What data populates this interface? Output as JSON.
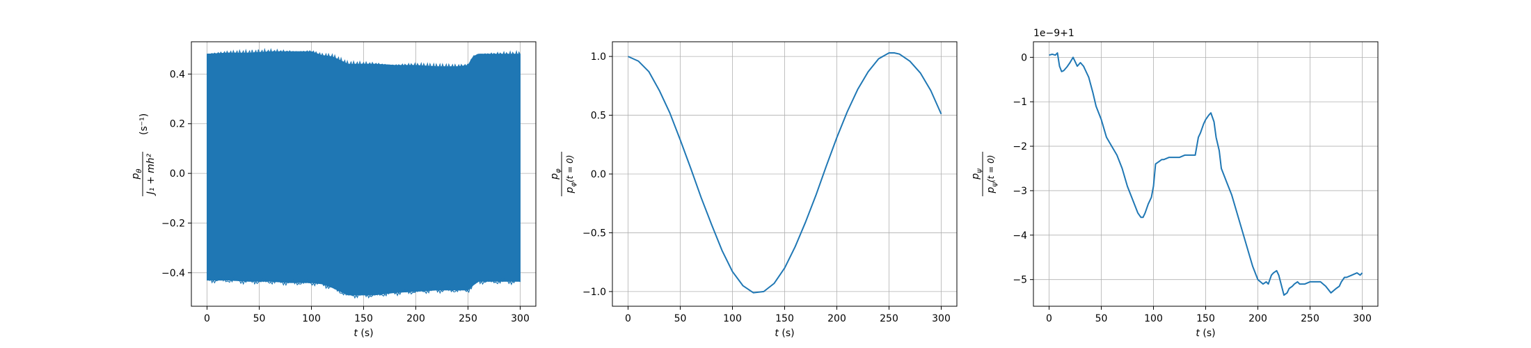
{
  "chart_data": [
    {
      "type": "line",
      "xlabel_var": "t",
      "xlabel_unit": " (s)",
      "ylabel": {
        "num": "p",
        "num_sub": "θ",
        "den": "J₁ + mh²",
        "unit": "(s⁻¹)"
      },
      "xlim": [
        -15,
        315
      ],
      "ylim": [
        -0.535,
        0.53
      ],
      "xticks": [
        0,
        50,
        100,
        150,
        200,
        250,
        300
      ],
      "yticks": [
        -0.4,
        -0.2,
        0.0,
        0.2,
        0.4
      ],
      "ytick_labels": [
        "−0.4",
        "−0.2",
        "0.0",
        "0.2",
        "0.4"
      ],
      "grid": true,
      "color": "#1f77b4",
      "series": [
        {
          "style": "envelope",
          "x": [
            0,
            20,
            40,
            60,
            80,
            100,
            110,
            120,
            125,
            130,
            135,
            140,
            150,
            160,
            180,
            200,
            220,
            240,
            250,
            255,
            260,
            280,
            300
          ],
          "upper": [
            0.48,
            0.485,
            0.485,
            0.49,
            0.49,
            0.49,
            0.475,
            0.47,
            0.46,
            0.45,
            0.44,
            0.44,
            0.44,
            0.44,
            0.435,
            0.435,
            0.43,
            0.43,
            0.435,
            0.47,
            0.48,
            0.48,
            0.48
          ],
          "lower": [
            -0.43,
            -0.43,
            -0.435,
            -0.435,
            -0.44,
            -0.44,
            -0.445,
            -0.46,
            -0.47,
            -0.48,
            -0.49,
            -0.49,
            -0.49,
            -0.49,
            -0.48,
            -0.475,
            -0.47,
            -0.47,
            -0.47,
            -0.45,
            -0.435,
            -0.435,
            -0.435
          ]
        }
      ]
    },
    {
      "type": "line",
      "xlabel_var": "t",
      "xlabel_unit": " (s)",
      "ylabel": {
        "num": "p",
        "num_sub": "φ",
        "den": "p",
        "den_sub": "φ",
        "den_arg": "(t = 0)"
      },
      "xlim": [
        -15,
        315
      ],
      "ylim": [
        -1.125,
        1.125
      ],
      "xticks": [
        0,
        50,
        100,
        150,
        200,
        250,
        300
      ],
      "yticks": [
        -1.0,
        -0.5,
        0.0,
        0.5,
        1.0
      ],
      "ytick_labels": [
        "−1.0",
        "−0.5",
        "0.0",
        "0.5",
        "1.0"
      ],
      "grid": true,
      "color": "#1f77b4",
      "series": [
        {
          "style": "line",
          "x": [
            0,
            10,
            20,
            30,
            40,
            50,
            60,
            70,
            80,
            90,
            100,
            110,
            120,
            130,
            140,
            150,
            160,
            170,
            180,
            190,
            200,
            210,
            220,
            230,
            240,
            250,
            255,
            260,
            270,
            280,
            290,
            300
          ],
          "y": [
            1.0,
            0.96,
            0.87,
            0.71,
            0.52,
            0.29,
            0.05,
            -0.2,
            -0.43,
            -0.65,
            -0.83,
            -0.95,
            -1.01,
            -1.0,
            -0.93,
            -0.8,
            -0.62,
            -0.41,
            -0.18,
            0.07,
            0.31,
            0.53,
            0.72,
            0.87,
            0.98,
            1.03,
            1.03,
            1.02,
            0.96,
            0.86,
            0.71,
            0.51
          ]
        }
      ]
    },
    {
      "type": "line",
      "offset_text": "1e−9+1",
      "xlabel_var": "t",
      "xlabel_unit": " (s)",
      "ylabel": {
        "num": "p",
        "num_sub": "ψ",
        "den": "p",
        "den_sub": "ψ",
        "den_arg": "(t = 0)"
      },
      "xlim": [
        -15,
        315
      ],
      "ylim": [
        -5.6,
        0.35
      ],
      "xticks": [
        0,
        50,
        100,
        150,
        200,
        250,
        300
      ],
      "yticks": [
        -5,
        -4,
        -3,
        -2,
        -1,
        0
      ],
      "ytick_labels": [
        "−5",
        "−4",
        "−3",
        "−2",
        "−1",
        "0"
      ],
      "grid": true,
      "color": "#1f77b4",
      "series": [
        {
          "style": "line",
          "x": [
            0,
            3,
            6,
            8,
            10,
            12,
            14,
            17,
            20,
            23,
            25,
            27,
            30,
            33,
            35,
            38,
            42,
            45,
            50,
            55,
            60,
            65,
            70,
            75,
            80,
            85,
            88,
            90,
            92,
            95,
            98,
            100,
            102,
            105,
            108,
            110,
            115,
            120,
            125,
            130,
            135,
            140,
            143,
            145,
            148,
            150,
            153,
            155,
            158,
            160,
            163,
            165,
            170,
            175,
            180,
            185,
            190,
            195,
            200,
            205,
            208,
            210,
            213,
            215,
            218,
            220,
            225,
            228,
            230,
            233,
            235,
            238,
            240,
            245,
            250,
            255,
            260,
            265,
            270,
            275,
            278,
            280,
            283,
            285,
            290,
            295,
            298,
            300
          ],
          "y": [
            0.05,
            0.07,
            0.05,
            0.1,
            -0.2,
            -0.32,
            -0.3,
            -0.22,
            -0.12,
            0.0,
            -0.1,
            -0.2,
            -0.12,
            -0.2,
            -0.3,
            -0.45,
            -0.8,
            -1.1,
            -1.4,
            -1.8,
            -2.0,
            -2.2,
            -2.5,
            -2.9,
            -3.2,
            -3.5,
            -3.6,
            -3.6,
            -3.5,
            -3.3,
            -3.15,
            -2.9,
            -2.4,
            -2.35,
            -2.3,
            -2.3,
            -2.25,
            -2.25,
            -2.25,
            -2.2,
            -2.2,
            -2.2,
            -1.8,
            -1.7,
            -1.5,
            -1.4,
            -1.3,
            -1.25,
            -1.45,
            -1.8,
            -2.1,
            -2.5,
            -2.8,
            -3.1,
            -3.5,
            -3.9,
            -4.3,
            -4.7,
            -5.0,
            -5.1,
            -5.05,
            -5.1,
            -4.9,
            -4.85,
            -4.8,
            -4.9,
            -5.35,
            -5.3,
            -5.2,
            -5.15,
            -5.1,
            -5.05,
            -5.1,
            -5.1,
            -5.05,
            -5.05,
            -5.05,
            -5.15,
            -5.3,
            -5.2,
            -5.15,
            -5.05,
            -4.95,
            -4.95,
            -4.9,
            -4.85,
            -4.9,
            -4.85
          ]
        }
      ]
    }
  ]
}
